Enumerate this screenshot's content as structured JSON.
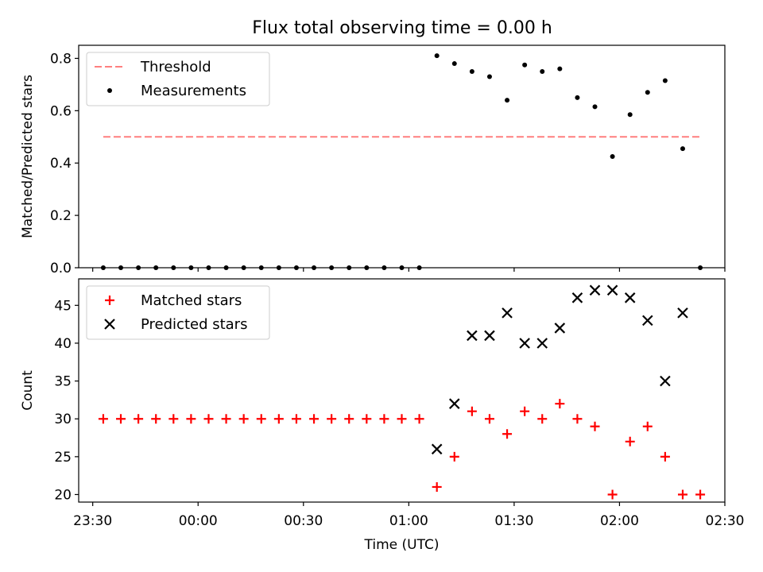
{
  "title": "Flux total observing time = 0.00 h",
  "chart_data": [
    {
      "type": "scatter",
      "ylabel": "Matched/Predicted stars",
      "ylim": [
        0,
        0.85
      ],
      "yticks": [
        0.0,
        0.2,
        0.4,
        0.6,
        0.8
      ],
      "yticklabels": [
        "0.0",
        "0.2",
        "0.4",
        "0.6",
        "0.8"
      ],
      "legend_position": "top-left",
      "threshold": {
        "name": "Threshold",
        "value": 0.5,
        "color": "#ff7f7f",
        "style": "dashed",
        "x_start": "23:33",
        "x_end": "02:23"
      },
      "series": [
        {
          "name": "Measurements",
          "marker": "dot",
          "color": "#000000",
          "x": [
            "23:33",
            "23:38",
            "23:43",
            "23:48",
            "23:53",
            "23:58",
            "00:03",
            "00:08",
            "00:13",
            "00:18",
            "00:23",
            "00:28",
            "00:33",
            "00:38",
            "00:43",
            "00:48",
            "00:53",
            "00:58",
            "01:03",
            "01:08",
            "01:13",
            "01:18",
            "01:23",
            "01:28",
            "01:33",
            "01:38",
            "01:43",
            "01:48",
            "01:53",
            "01:58",
            "02:03",
            "02:08",
            "02:13",
            "02:18",
            "02:23"
          ],
          "y": [
            0,
            0,
            0,
            0,
            0,
            0,
            0,
            0,
            0,
            0,
            0,
            0,
            0,
            0,
            0,
            0,
            0,
            0,
            0,
            0.81,
            0.78,
            0.75,
            0.73,
            0.64,
            0.775,
            0.75,
            0.76,
            0.65,
            0.615,
            0.425,
            0.585,
            0.67,
            0.715,
            0.455,
            0
          ]
        }
      ]
    },
    {
      "type": "scatter",
      "ylabel": "Count",
      "xlabel": "Time (UTC)",
      "ylim": [
        19,
        48.5
      ],
      "yticks": [
        20,
        25,
        30,
        35,
        40,
        45
      ],
      "yticklabels": [
        "20",
        "25",
        "30",
        "35",
        "40",
        "45"
      ],
      "xlim": [
        "23:26",
        "02:30"
      ],
      "xticks": [
        "23:30",
        "00:00",
        "00:30",
        "01:00",
        "01:30",
        "02:00",
        "02:30"
      ],
      "legend_position": "top-left",
      "series": [
        {
          "name": "Matched stars",
          "marker": "plus",
          "color": "#ff0000",
          "x": [
            "23:33",
            "23:38",
            "23:43",
            "23:48",
            "23:53",
            "23:58",
            "00:03",
            "00:08",
            "00:13",
            "00:18",
            "00:23",
            "00:28",
            "00:33",
            "00:38",
            "00:43",
            "00:48",
            "00:53",
            "00:58",
            "01:03",
            "01:08",
            "01:13",
            "01:18",
            "01:23",
            "01:28",
            "01:33",
            "01:38",
            "01:43",
            "01:48",
            "01:53",
            "01:58",
            "02:03",
            "02:08",
            "02:13",
            "02:18",
            "02:23"
          ],
          "y": [
            30,
            30,
            30,
            30,
            30,
            30,
            30,
            30,
            30,
            30,
            30,
            30,
            30,
            30,
            30,
            30,
            30,
            30,
            30,
            21,
            25,
            31,
            30,
            28,
            31,
            30,
            32,
            30,
            29,
            20,
            27,
            29,
            25,
            20,
            20
          ]
        },
        {
          "name": "Predicted stars",
          "marker": "x",
          "color": "#000000",
          "x": [
            "01:08",
            "01:13",
            "01:18",
            "01:23",
            "01:28",
            "01:33",
            "01:38",
            "01:43",
            "01:48",
            "01:53",
            "01:58",
            "02:03",
            "02:08",
            "02:13",
            "02:18"
          ],
          "y": [
            26,
            32,
            41,
            41,
            44,
            40,
            40,
            42,
            46,
            47,
            47,
            46,
            43,
            35,
            44
          ]
        }
      ]
    }
  ]
}
